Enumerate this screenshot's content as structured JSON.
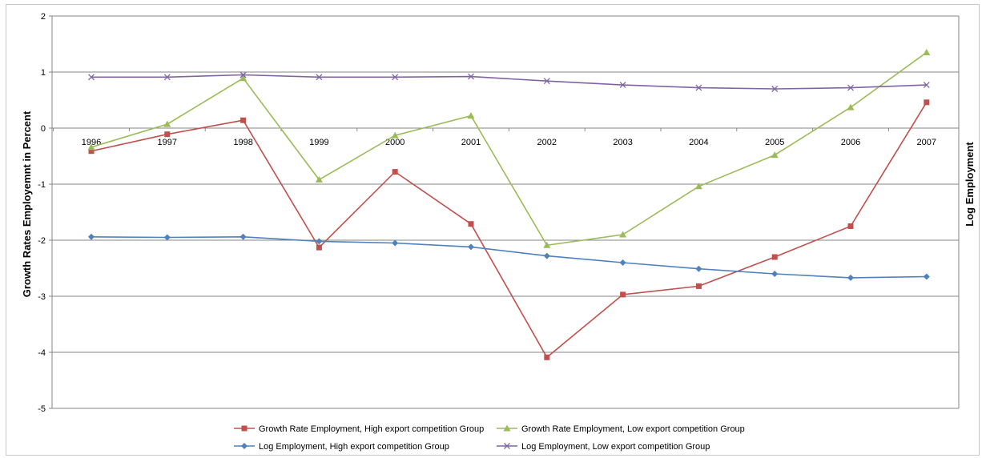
{
  "chart_data": {
    "type": "line",
    "title": "",
    "xlabel": "",
    "ylabel": "Growth Rates Employemnt in Percent",
    "y2label": "Log Employment",
    "ylim": [
      -5,
      2
    ],
    "yticks": [
      2,
      1,
      0,
      -1,
      -2,
      -3,
      -4,
      -5
    ],
    "grid": true,
    "legend_position": "bottom",
    "categories": [
      "1996",
      "1997",
      "1998",
      "1999",
      "2000",
      "2001",
      "2002",
      "2003",
      "2004",
      "2005",
      "2006",
      "2007"
    ],
    "series": [
      {
        "name": "Growth Rate Employment, High export competition Group",
        "color": "#c0504d",
        "marker": "square",
        "values": [
          -0.41,
          -0.11,
          0.14,
          -2.13,
          -0.78,
          -1.71,
          -4.09,
          -2.97,
          -2.82,
          -2.3,
          -1.75,
          0.46
        ]
      },
      {
        "name": "Growth Rate Employment, Low export competition Group",
        "color": "#9bbb59",
        "marker": "triangle",
        "values": [
          -0.34,
          0.07,
          0.89,
          -0.92,
          -0.13,
          0.22,
          -2.09,
          -1.9,
          -1.04,
          -0.48,
          0.37,
          1.35
        ]
      },
      {
        "name": "Log Employment, High export competition Group",
        "color": "#4f81bd",
        "marker": "diamond",
        "values": [
          -1.94,
          -1.95,
          -1.94,
          -2.02,
          -2.05,
          -2.12,
          -2.28,
          -2.4,
          -2.51,
          -2.6,
          -2.67,
          -2.65
        ]
      },
      {
        "name": "Log Employment, Low export competition Group",
        "color": "#8064a2",
        "marker": "x",
        "values": [
          0.91,
          0.91,
          0.95,
          0.91,
          0.91,
          0.92,
          0.84,
          0.77,
          0.72,
          0.7,
          0.72,
          0.77
        ]
      }
    ]
  }
}
